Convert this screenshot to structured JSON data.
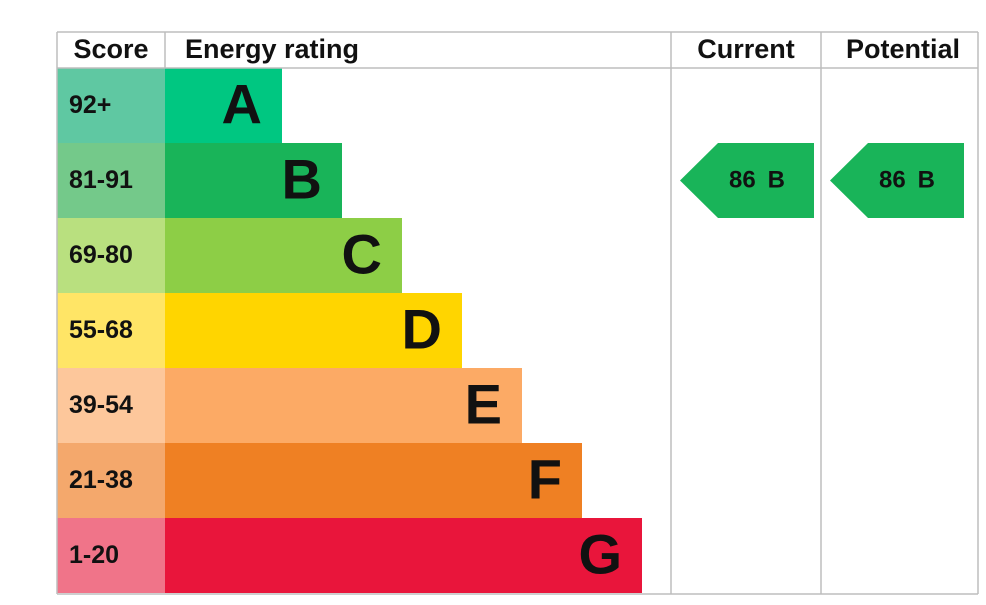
{
  "header": {
    "score": "Score",
    "rating": "Energy rating",
    "current": "Current",
    "potential": "Potential"
  },
  "rows": [
    {
      "score": "92+",
      "letter": "A"
    },
    {
      "score": "81-91",
      "letter": "B"
    },
    {
      "score": "69-80",
      "letter": "C"
    },
    {
      "score": "55-68",
      "letter": "D"
    },
    {
      "score": "39-54",
      "letter": "E"
    },
    {
      "score": "21-38",
      "letter": "F"
    },
    {
      "score": "1-20",
      "letter": "G"
    }
  ],
  "current": {
    "score": 86,
    "band": "B"
  },
  "potential": {
    "score": 86,
    "band": "B"
  }
}
